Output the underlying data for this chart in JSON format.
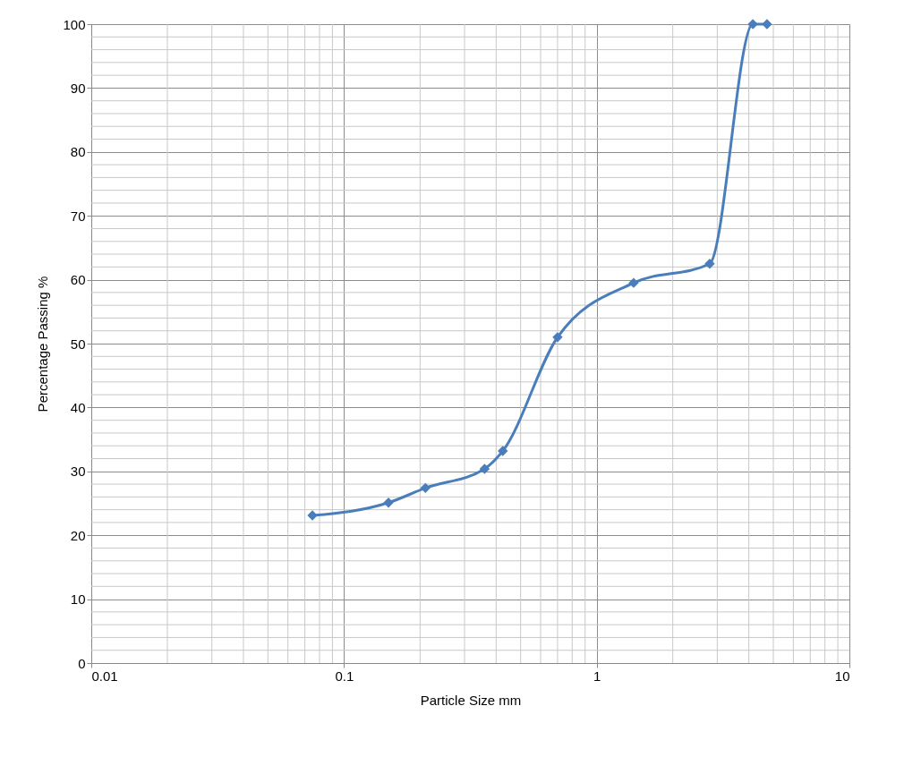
{
  "chart_data": {
    "type": "line",
    "xlabel": "Particle Size mm",
    "ylabel": "Percentage Passing %",
    "x": [
      0.075,
      0.15,
      0.21,
      0.36,
      0.425,
      0.7,
      1.4,
      2.8,
      4.15,
      4.72
    ],
    "series": [
      {
        "color": "#4a7ebb",
        "values": [
          23.1,
          25.1,
          27.4,
          30.4,
          33.2,
          51.0,
          59.5,
          62.5,
          100,
          100
        ]
      }
    ],
    "log": "x",
    "xlim": [
      0.01,
      10
    ],
    "xticks": [
      0.01,
      0.1,
      1,
      10
    ],
    "ylim": [
      0,
      100
    ],
    "yticks": [
      0,
      10,
      20,
      30,
      40,
      50,
      60,
      70,
      80,
      90,
      100
    ],
    "grid": true,
    "marker": "diamond",
    "line_style": "solid"
  }
}
